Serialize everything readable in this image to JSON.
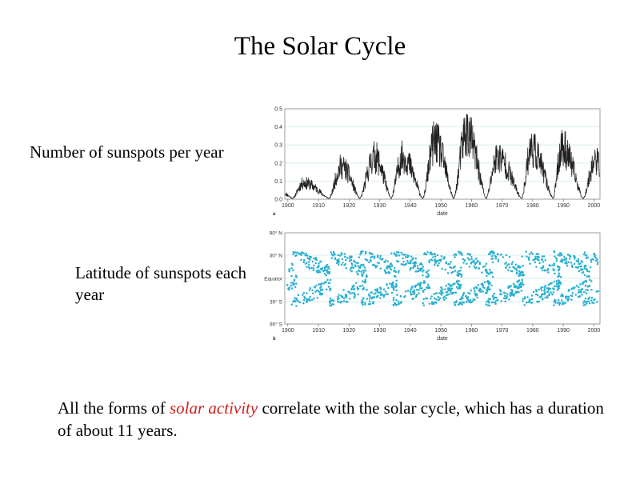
{
  "slide": {
    "title": "The Solar Cycle",
    "label_number": "Number of sunspots per year",
    "label_latitude": "Latitude of sunspots each year",
    "footer_before": "All the forms of ",
    "footer_highlight": "solar activity",
    "footer_after": " correlate with the solar cycle, which has a duration of about 11 years.",
    "highlight_color": "#d12020"
  },
  "chart_data": [
    {
      "type": "line",
      "panel_letter": "a",
      "xlabel": "date",
      "ylabel": "",
      "xlim": [
        1899,
        2002
      ],
      "ylim": [
        0,
        0.5
      ],
      "x_ticks": [
        1900,
        1910,
        1920,
        1930,
        1940,
        1950,
        1960,
        1970,
        1980,
        1990,
        2000
      ],
      "y_ticks": [
        0.0,
        0.1,
        0.2,
        0.3,
        0.4,
        0.5
      ],
      "y_tick_labels": [
        "0.0",
        "0.1",
        "0.2",
        "0.3",
        "0.4",
        "0.5"
      ],
      "grid": "horizontal",
      "line_color": "#222222",
      "cycle_minima": [
        1901.5,
        1913.5,
        1923.5,
        1933.7,
        1944.1,
        1954.2,
        1964.8,
        1976.4,
        1986.7,
        1996.5
      ],
      "cycle_maxima": [
        {
          "year": 1905.2,
          "value": 0.12
        },
        {
          "year": 1917.5,
          "value": 0.24
        },
        {
          "year": 1928.3,
          "value": 0.31
        },
        {
          "year": 1937.5,
          "value": 0.31
        },
        {
          "year": 1948.0,
          "value": 0.42
        },
        {
          "year": 1958.3,
          "value": 0.49
        },
        {
          "year": 1968.5,
          "value": 0.31
        },
        {
          "year": 1979.5,
          "value": 0.37
        },
        {
          "year": 1989.5,
          "value": 0.38
        },
        {
          "year": 2000.5,
          "value": 0.28
        }
      ]
    },
    {
      "type": "scatter",
      "panel_letter": "b",
      "xlabel": "date",
      "ylabel": "",
      "xlim": [
        1899,
        2002
      ],
      "ylim": [
        -90,
        90
      ],
      "x_ticks": [
        1900,
        1910,
        1920,
        1930,
        1940,
        1950,
        1960,
        1970,
        1980,
        1990,
        2000
      ],
      "y_ticks": [
        90,
        30,
        0,
        -30,
        -90
      ],
      "y_tick_labels": [
        "90° N",
        "30° N",
        "Equator",
        "30° S",
        "90° S"
      ],
      "grid": "horizontal",
      "point_color": "#2ab0cf",
      "description_of_pattern": "butterfly",
      "cycle_starts": [
        1901.5,
        1913.5,
        1923.5,
        1933.7,
        1944.1,
        1954.2,
        1964.8,
        1976.4,
        1986.7,
        1996.5
      ],
      "cycle_length_years": 11,
      "start_latitude": 35,
      "end_latitude": 7
    }
  ]
}
